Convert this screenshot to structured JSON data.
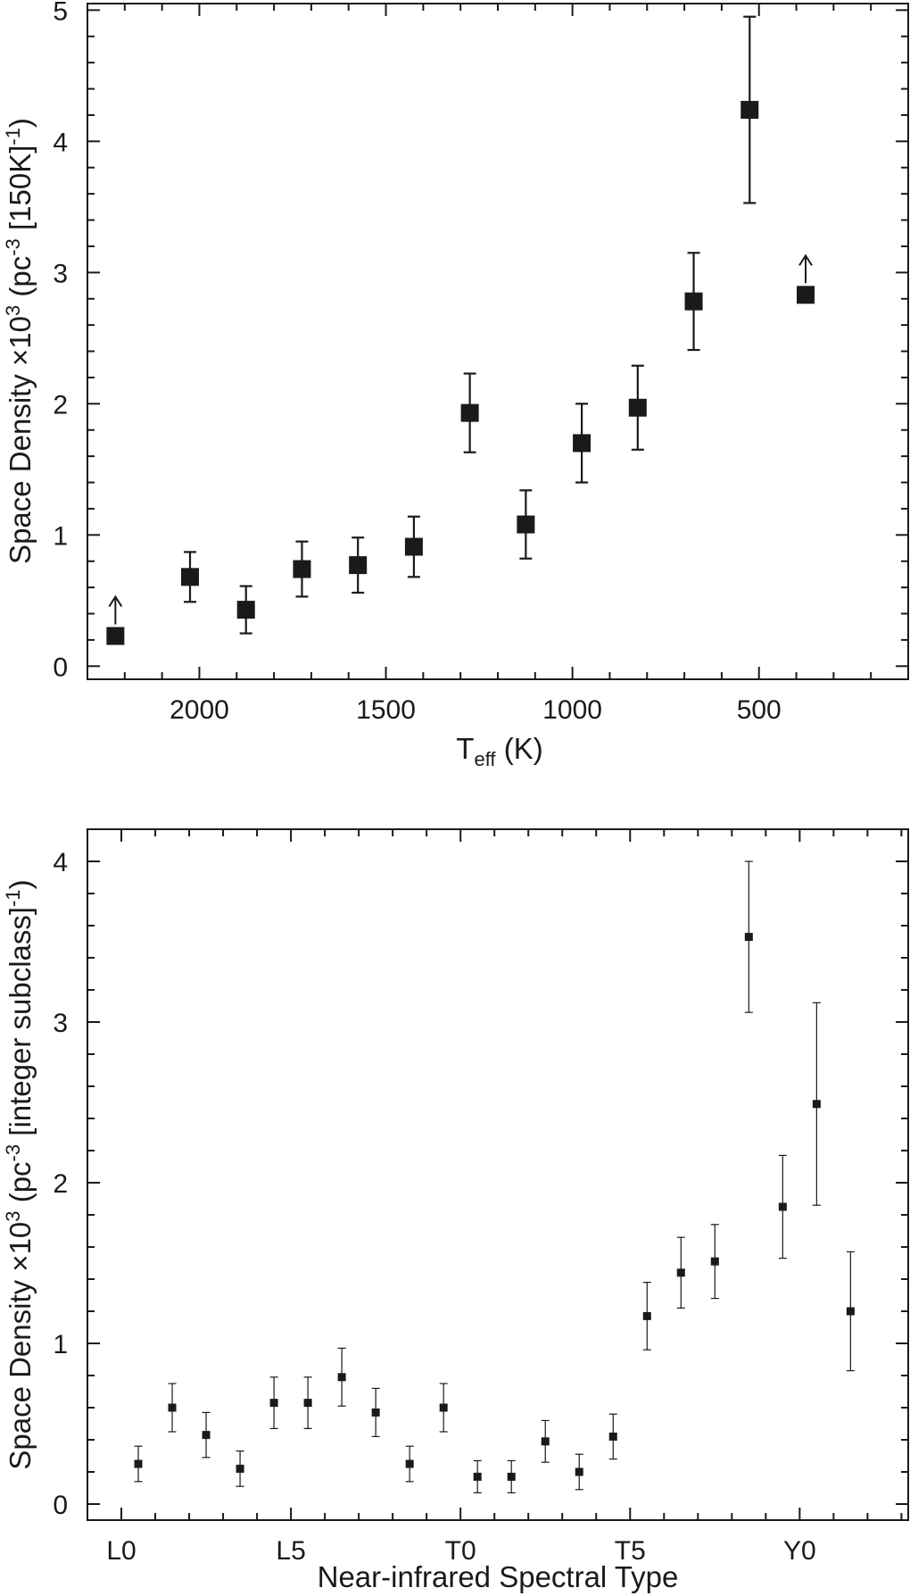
{
  "chart_data": [
    {
      "type": "scatter",
      "title": "",
      "xlabel_main": "T",
      "xlabel_sub": "eff",
      "xlabel_tail": " (K)",
      "ylabel_parts": [
        "Space Density ×10",
        "3",
        " (pc",
        "-3",
        " [150K]",
        "-1",
        ")"
      ],
      "x_reversed": true,
      "xlim": [
        2300,
        100
      ],
      "ylim": [
        -0.1,
        5.05
      ],
      "x_ticks": [
        2000,
        1500,
        1000,
        500
      ],
      "x_tick_labels": [
        "2000",
        "1500",
        "1000",
        "500"
      ],
      "y_ticks": [
        0,
        1,
        2,
        3,
        4,
        5
      ],
      "y_tick_labels": [
        "0",
        "1",
        "2",
        "3",
        "4",
        "5"
      ],
      "series": [
        {
          "name": "space density",
          "points": [
            {
              "x": 2225,
              "y": 0.23,
              "lower_limit": true
            },
            {
              "x": 2025,
              "y": 0.68,
              "err": 0.19
            },
            {
              "x": 1875,
              "y": 0.43,
              "err": 0.18
            },
            {
              "x": 1725,
              "y": 0.74,
              "err": 0.21
            },
            {
              "x": 1575,
              "y": 0.77,
              "err": 0.21
            },
            {
              "x": 1425,
              "y": 0.91,
              "err": 0.23
            },
            {
              "x": 1275,
              "y": 1.93,
              "err": 0.3
            },
            {
              "x": 1125,
              "y": 1.08,
              "err": 0.26
            },
            {
              "x": 975,
              "y": 1.7,
              "err": 0.3
            },
            {
              "x": 825,
              "y": 1.97,
              "err": 0.32
            },
            {
              "x": 675,
              "y": 2.78,
              "err": 0.37
            },
            {
              "x": 525,
              "y": 4.24,
              "err": 0.71
            },
            {
              "x": 375,
              "y": 2.83,
              "lower_limit": true
            }
          ]
        }
      ]
    },
    {
      "type": "scatter",
      "title": "",
      "xlabel": "Near-infrared Spectral Type",
      "ylabel_parts": [
        "Space Density ×10",
        "3",
        " (pc",
        "-3",
        " [integer subclass]",
        "-1",
        ")"
      ],
      "xlim": [
        -1,
        23.2
      ],
      "ylim": [
        -0.1,
        4.2
      ],
      "x_ticks": [
        0,
        5,
        10,
        15,
        20
      ],
      "x_tick_labels": [
        "L0",
        "L5",
        "T0",
        "T5",
        "Y0"
      ],
      "y_ticks": [
        0,
        1,
        2,
        3,
        4
      ],
      "y_tick_labels": [
        "0",
        "1",
        "2",
        "3",
        "4"
      ],
      "series": [
        {
          "name": "space density",
          "points": [
            {
              "x": 0.5,
              "y": 0.25,
              "err": 0.11
            },
            {
              "x": 1.5,
              "y": 0.6,
              "err": 0.15
            },
            {
              "x": 2.5,
              "y": 0.43,
              "err": 0.14
            },
            {
              "x": 3.5,
              "y": 0.22,
              "err": 0.11
            },
            {
              "x": 4.5,
              "y": 0.63,
              "err": 0.16
            },
            {
              "x": 5.5,
              "y": 0.63,
              "err": 0.16
            },
            {
              "x": 6.5,
              "y": 0.79,
              "err": 0.18
            },
            {
              "x": 7.5,
              "y": 0.57,
              "err": 0.15
            },
            {
              "x": 8.5,
              "y": 0.25,
              "err": 0.11
            },
            {
              "x": 9.5,
              "y": 0.6,
              "err": 0.15
            },
            {
              "x": 10.5,
              "y": 0.17,
              "err": 0.1
            },
            {
              "x": 11.5,
              "y": 0.17,
              "err": 0.1
            },
            {
              "x": 12.5,
              "y": 0.39,
              "err": 0.13
            },
            {
              "x": 13.5,
              "y": 0.2,
              "err": 0.11
            },
            {
              "x": 14.5,
              "y": 0.42,
              "err": 0.14
            },
            {
              "x": 15.5,
              "y": 1.17,
              "err": 0.21
            },
            {
              "x": 16.5,
              "y": 1.44,
              "err": 0.22
            },
            {
              "x": 17.5,
              "y": 1.51,
              "err": 0.23
            },
            {
              "x": 18.5,
              "y": 3.53,
              "err": 0.47
            },
            {
              "x": 19.5,
              "y": 1.85,
              "err": 0.32
            },
            {
              "x": 20.5,
              "y": 2.49,
              "err": 0.63
            },
            {
              "x": 21.5,
              "y": 1.2,
              "err": 0.37
            }
          ]
        }
      ]
    }
  ]
}
